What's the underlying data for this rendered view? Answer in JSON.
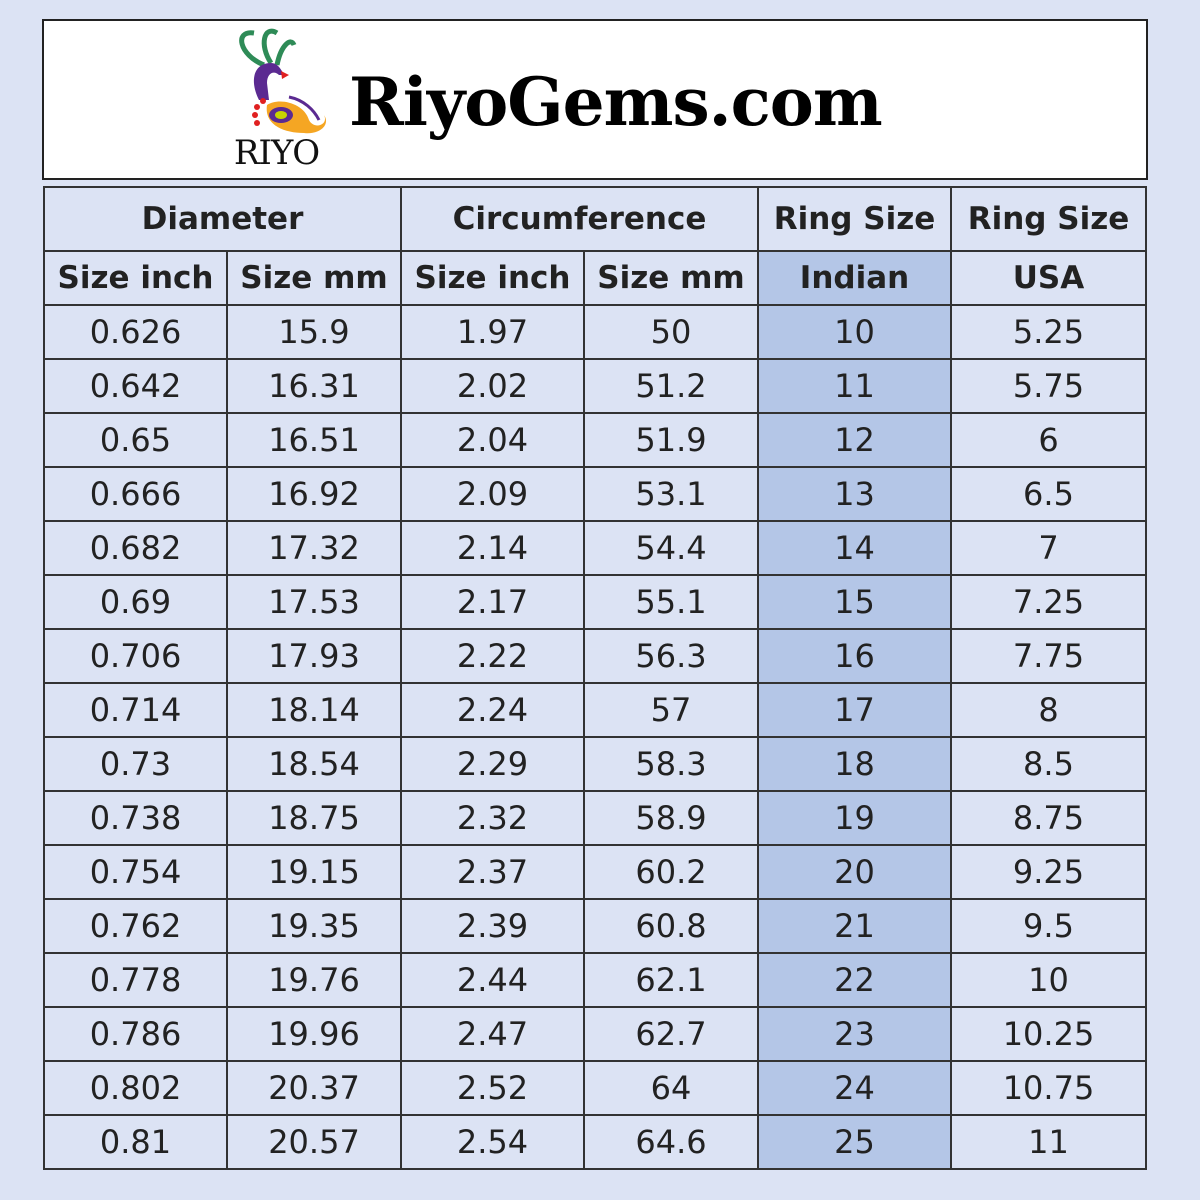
{
  "brand": {
    "logo_text": "RIYO",
    "site": "RiyoGems.com"
  },
  "colors": {
    "background": "#dce3f4",
    "indian_column": "#b4c6e7"
  },
  "header": {
    "groups": [
      "Diameter",
      "Circumference",
      "Ring Size",
      "Ring Size"
    ],
    "columns": [
      "Size inch",
      "Size mm",
      "Size inch",
      "Size mm",
      "Indian",
      "USA"
    ]
  },
  "rows": [
    [
      "0.626",
      "15.9",
      "1.97",
      "50",
      "10",
      "5.25"
    ],
    [
      "0.642",
      "16.31",
      "2.02",
      "51.2",
      "11",
      "5.75"
    ],
    [
      "0.65",
      "16.51",
      "2.04",
      "51.9",
      "12",
      "6"
    ],
    [
      "0.666",
      "16.92",
      "2.09",
      "53.1",
      "13",
      "6.5"
    ],
    [
      "0.682",
      "17.32",
      "2.14",
      "54.4",
      "14",
      "7"
    ],
    [
      "0.69",
      "17.53",
      "2.17",
      "55.1",
      "15",
      "7.25"
    ],
    [
      "0.706",
      "17.93",
      "2.22",
      "56.3",
      "16",
      "7.75"
    ],
    [
      "0.714",
      "18.14",
      "2.24",
      "57",
      "17",
      "8"
    ],
    [
      "0.73",
      "18.54",
      "2.29",
      "58.3",
      "18",
      "8.5"
    ],
    [
      "0.738",
      "18.75",
      "2.32",
      "58.9",
      "19",
      "8.75"
    ],
    [
      "0.754",
      "19.15",
      "2.37",
      "60.2",
      "20",
      "9.25"
    ],
    [
      "0.762",
      "19.35",
      "2.39",
      "60.8",
      "21",
      "9.5"
    ],
    [
      "0.778",
      "19.76",
      "2.44",
      "62.1",
      "22",
      "10"
    ],
    [
      "0.786",
      "19.96",
      "2.47",
      "62.7",
      "23",
      "10.25"
    ],
    [
      "0.802",
      "20.37",
      "2.52",
      "64",
      "24",
      "10.75"
    ],
    [
      "0.81",
      "20.57",
      "2.54",
      "64.6",
      "25",
      "11"
    ]
  ]
}
